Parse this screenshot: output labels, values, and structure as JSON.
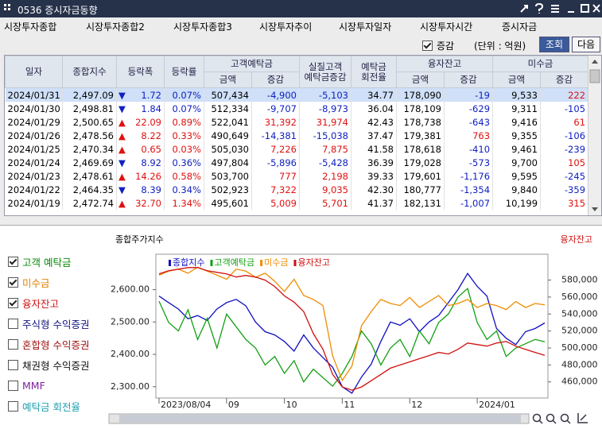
{
  "window_title": "0536 증시자금동향",
  "tabs": [
    "시장투자종합",
    "시장투자종합2",
    "시장투자종합3",
    "시장투자추이",
    "시장투자일자",
    "시장투자시간",
    "증시자금"
  ],
  "active_tab": 6,
  "toolbar": {
    "checkbox_label": "증감",
    "checked": true,
    "unit": "(단위 : 억원)",
    "buttons": [
      "조회",
      "다음"
    ]
  },
  "table": {
    "header_top": [
      "일자",
      "종합지수",
      "등락폭",
      "등락률",
      "고객예탁금",
      "실질고객\n예탁금증감",
      "예탁금\n회전율",
      "융자잔고",
      "미수금"
    ],
    "header_sub": [
      "금액",
      "증감",
      "금액",
      "증감",
      "금액",
      "증감"
    ],
    "rows": [
      [
        "2024/01/31",
        "2,497.09",
        "▼",
        "1.72",
        "0.07%",
        "507,434",
        "-4,900",
        "-5,103",
        "34.77",
        "178,090",
        "-19",
        "9,533",
        "222"
      ],
      [
        "2024/01/30",
        "2,498.81",
        "▼",
        "1.84",
        "0.07%",
        "512,334",
        "-9,707",
        "-8,973",
        "36.04",
        "178,109",
        "-629",
        "9,311",
        "-105"
      ],
      [
        "2024/01/29",
        "2,500.65",
        "▲",
        "22.09",
        "0.89%",
        "522,041",
        "31,392",
        "31,974",
        "42.43",
        "178,738",
        "-643",
        "9,416",
        "61"
      ],
      [
        "2024/01/26",
        "2,478.56",
        "▲",
        "8.22",
        "0.33%",
        "490,649",
        "-14,381",
        "-15,038",
        "37.47",
        "179,381",
        "763",
        "9,355",
        "-106"
      ],
      [
        "2024/01/25",
        "2,470.34",
        "▲",
        "0.65",
        "0.03%",
        "505,030",
        "7,226",
        "7,875",
        "41.58",
        "178,618",
        "-410",
        "9,461",
        "-239"
      ],
      [
        "2024/01/24",
        "2,469.69",
        "▼",
        "8.92",
        "0.36%",
        "497,804",
        "-5,896",
        "-5,428",
        "36.39",
        "179,028",
        "-573",
        "9,700",
        "105"
      ],
      [
        "2024/01/23",
        "2,478.61",
        "▲",
        "14.26",
        "0.58%",
        "503,700",
        "777",
        "2,198",
        "39.33",
        "179,601",
        "-1,176",
        "9,595",
        "-245"
      ],
      [
        "2024/01/22",
        "2,464.35",
        "▼",
        "8.39",
        "0.34%",
        "502,923",
        "7,322",
        "9,035",
        "42.30",
        "180,777",
        "-1,354",
        "9,840",
        "-359"
      ],
      [
        "2024/01/19",
        "2,472.74",
        "▲",
        "32.70",
        "1.34%",
        "495,601",
        "5,009",
        "5,701",
        "41.37",
        "182,131",
        "-1,007",
        "10,199",
        "315"
      ]
    ]
  },
  "checklist": [
    {
      "label": "고객 예탁금",
      "checked": true,
      "color": "#0a8a0a"
    },
    {
      "label": "미수금",
      "checked": true,
      "color": "#e08000"
    },
    {
      "label": "융자잔고",
      "checked": true,
      "color": "#d01010"
    },
    {
      "label": "주식형 수익증권",
      "checked": false,
      "color": "#101080"
    },
    {
      "label": "혼합형 수익증권",
      "checked": false,
      "color": "#a01010"
    },
    {
      "label": "채권형 수익증권",
      "checked": false,
      "color": "#101010"
    },
    {
      "label": "MMF",
      "checked": false,
      "color": "#8020a0"
    },
    {
      "label": "예탁금 회전율",
      "checked": false,
      "color": "#20a0b0"
    }
  ],
  "chart_data": {
    "type": "line",
    "title": "종합주가지수",
    "right_label": "융자잔고",
    "categories": [
      "2023/08/04",
      null,
      null,
      null,
      null,
      null,
      null,
      "09",
      null,
      null,
      null,
      null,
      null,
      "10",
      null,
      null,
      null,
      null,
      null,
      "11",
      null,
      null,
      null,
      null,
      null,
      null,
      "12",
      null,
      null,
      null,
      null,
      null,
      null,
      "2024/01",
      null,
      null,
      null,
      null,
      null,
      null,
      null
    ],
    "ylim": [
      2270,
      2707
    ],
    "yticks": [
      {
        "value": 2300,
        "label": "2,300.00"
      },
      {
        "value": 2400,
        "label": "2,400.00"
      },
      {
        "value": 2500,
        "label": "2,500.00"
      },
      {
        "value": 2600,
        "label": "2,600.00"
      }
    ],
    "y2lim": [
      442900,
      609500
    ],
    "y2ticks": [
      {
        "value": 460000,
        "label": "460,000"
      },
      {
        "value": 480000,
        "label": "480,000"
      },
      {
        "value": 500000,
        "label": "500,000"
      },
      {
        "value": 520000,
        "label": "520,000"
      },
      {
        "value": 540000,
        "label": "540,000"
      },
      {
        "value": 560000,
        "label": "560,000"
      },
      {
        "value": 580000,
        "label": "580,000"
      }
    ],
    "series": [
      {
        "name": "종합지수",
        "color": "#1010c0",
        "axis": "y",
        "values": [
          2580,
          2560,
          2540,
          2510,
          2520,
          2505,
          2540,
          2560,
          2570,
          2550,
          2500,
          2470,
          2460,
          2440,
          2410,
          2460,
          2420,
          2390,
          2360,
          2300,
          2280,
          2330,
          2370,
          2440,
          2500,
          2490,
          2510,
          2470,
          2500,
          2520,
          2560,
          2600,
          2650,
          2610,
          2580,
          2480,
          2450,
          2430,
          2470,
          2480,
          2497.09
        ]
      },
      {
        "name": "고객예탁금",
        "color": "#12a012",
        "axis": "y2",
        "values": [
          555000,
          530000,
          520000,
          545000,
          510000,
          535000,
          500000,
          540000,
          525000,
          510000,
          500000,
          480000,
          490000,
          470000,
          485000,
          460000,
          475000,
          465000,
          455000,
          470000,
          490000,
          520000,
          505000,
          480000,
          500000,
          510000,
          490000,
          520000,
          505000,
          530000,
          540000,
          560000,
          570000,
          530000,
          510000,
          520000,
          490000,
          500000,
          505000,
          510000,
          507434
        ]
      },
      {
        "name": "미수금",
        "color": "#f08c00",
        "lim": [
          5000,
          12000
        ],
        "values": [
          11000,
          11200,
          11300,
          11100,
          11400,
          11200,
          11000,
          10800,
          11300,
          11200,
          10900,
          11100,
          10700,
          10200,
          10800,
          10000,
          9800,
          9500,
          7000,
          5800,
          6500,
          8500,
          9200,
          9800,
          9600,
          9500,
          9900,
          9400,
          9700,
          10000,
          9500,
          9600,
          9800,
          9400,
          9600,
          9500,
          9300,
          9700,
          9400,
          9600,
          9533
        ]
      },
      {
        "name": "융자잔고",
        "color": "#d01010",
        "lim": [
          165000,
          210000
        ],
        "values": [
          204000,
          205000,
          205500,
          206000,
          206000,
          205000,
          204500,
          204000,
          203000,
          203500,
          203000,
          202000,
          200000,
          197000,
          195000,
          192000,
          185000,
          180000,
          172000,
          168000,
          167000,
          168000,
          170000,
          172000,
          174000,
          175000,
          176000,
          177000,
          178000,
          179000,
          178500,
          180000,
          182000,
          181500,
          181000,
          182000,
          182500,
          181000,
          180000,
          179000,
          178090
        ]
      }
    ]
  }
}
